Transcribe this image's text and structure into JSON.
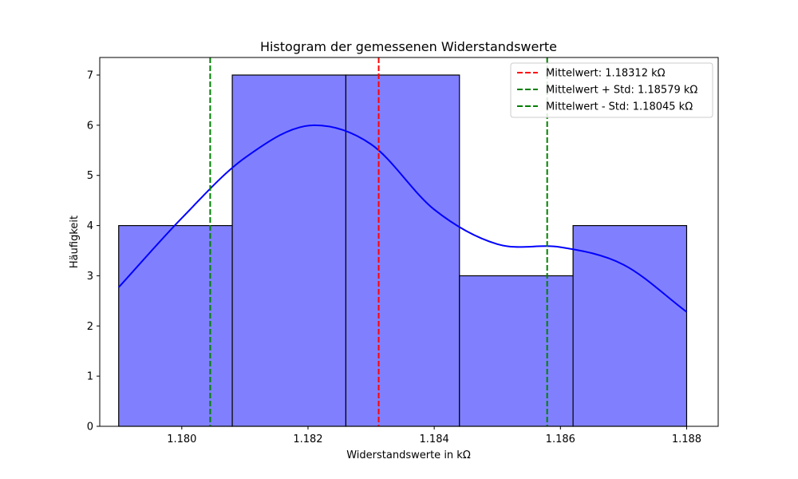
{
  "chart_data": {
    "type": "bar",
    "title": "Histogram der gemessenen Widerstandswerte",
    "xlabel": "Widerstandswerte in kΩ",
    "ylabel": "Häufigkeit",
    "xlim": [
      1.1787,
      1.1885
    ],
    "ylim": [
      0,
      7.35
    ],
    "x_ticks": [
      1.18,
      1.182,
      1.184,
      1.186,
      1.188
    ],
    "x_tick_labels": [
      "1.180",
      "1.182",
      "1.184",
      "1.186",
      "1.188"
    ],
    "y_ticks": [
      0,
      1,
      2,
      3,
      4,
      5,
      6,
      7
    ],
    "y_tick_labels": [
      "0",
      "1",
      "2",
      "3",
      "4",
      "5",
      "6",
      "7"
    ],
    "bins": [
      {
        "start": 1.179,
        "end": 1.1808,
        "count": 4
      },
      {
        "start": 1.1808,
        "end": 1.1826,
        "count": 7
      },
      {
        "start": 1.1826,
        "end": 1.1844,
        "count": 7
      },
      {
        "start": 1.1844,
        "end": 1.1862,
        "count": 3
      },
      {
        "start": 1.1862,
        "end": 1.188,
        "count": 4
      }
    ],
    "kde": {
      "x": [
        1.179,
        1.18,
        1.181,
        1.1821,
        1.183,
        1.184,
        1.185,
        1.186,
        1.187,
        1.188
      ],
      "y": [
        2.77,
        4.15,
        5.35,
        6.0,
        5.62,
        4.32,
        3.63,
        3.57,
        3.22,
        2.28
      ]
    },
    "reference_lines": [
      {
        "label": "Mittelwert: 1.18312 kΩ",
        "x": 1.18312,
        "color": "#ff0000"
      },
      {
        "label": "Mittelwert + Std: 1.18579 kΩ",
        "x": 1.18579,
        "color": "#008000"
      },
      {
        "label": "Mittelwert - Std: 1.18045 kΩ",
        "x": 1.18045,
        "color": "#008000"
      }
    ],
    "legend_position": "top-right",
    "grid": false,
    "colors": {
      "bar_fill": "#8080ff",
      "bar_edge": "#000000",
      "kde_line": "#0000ff"
    }
  }
}
